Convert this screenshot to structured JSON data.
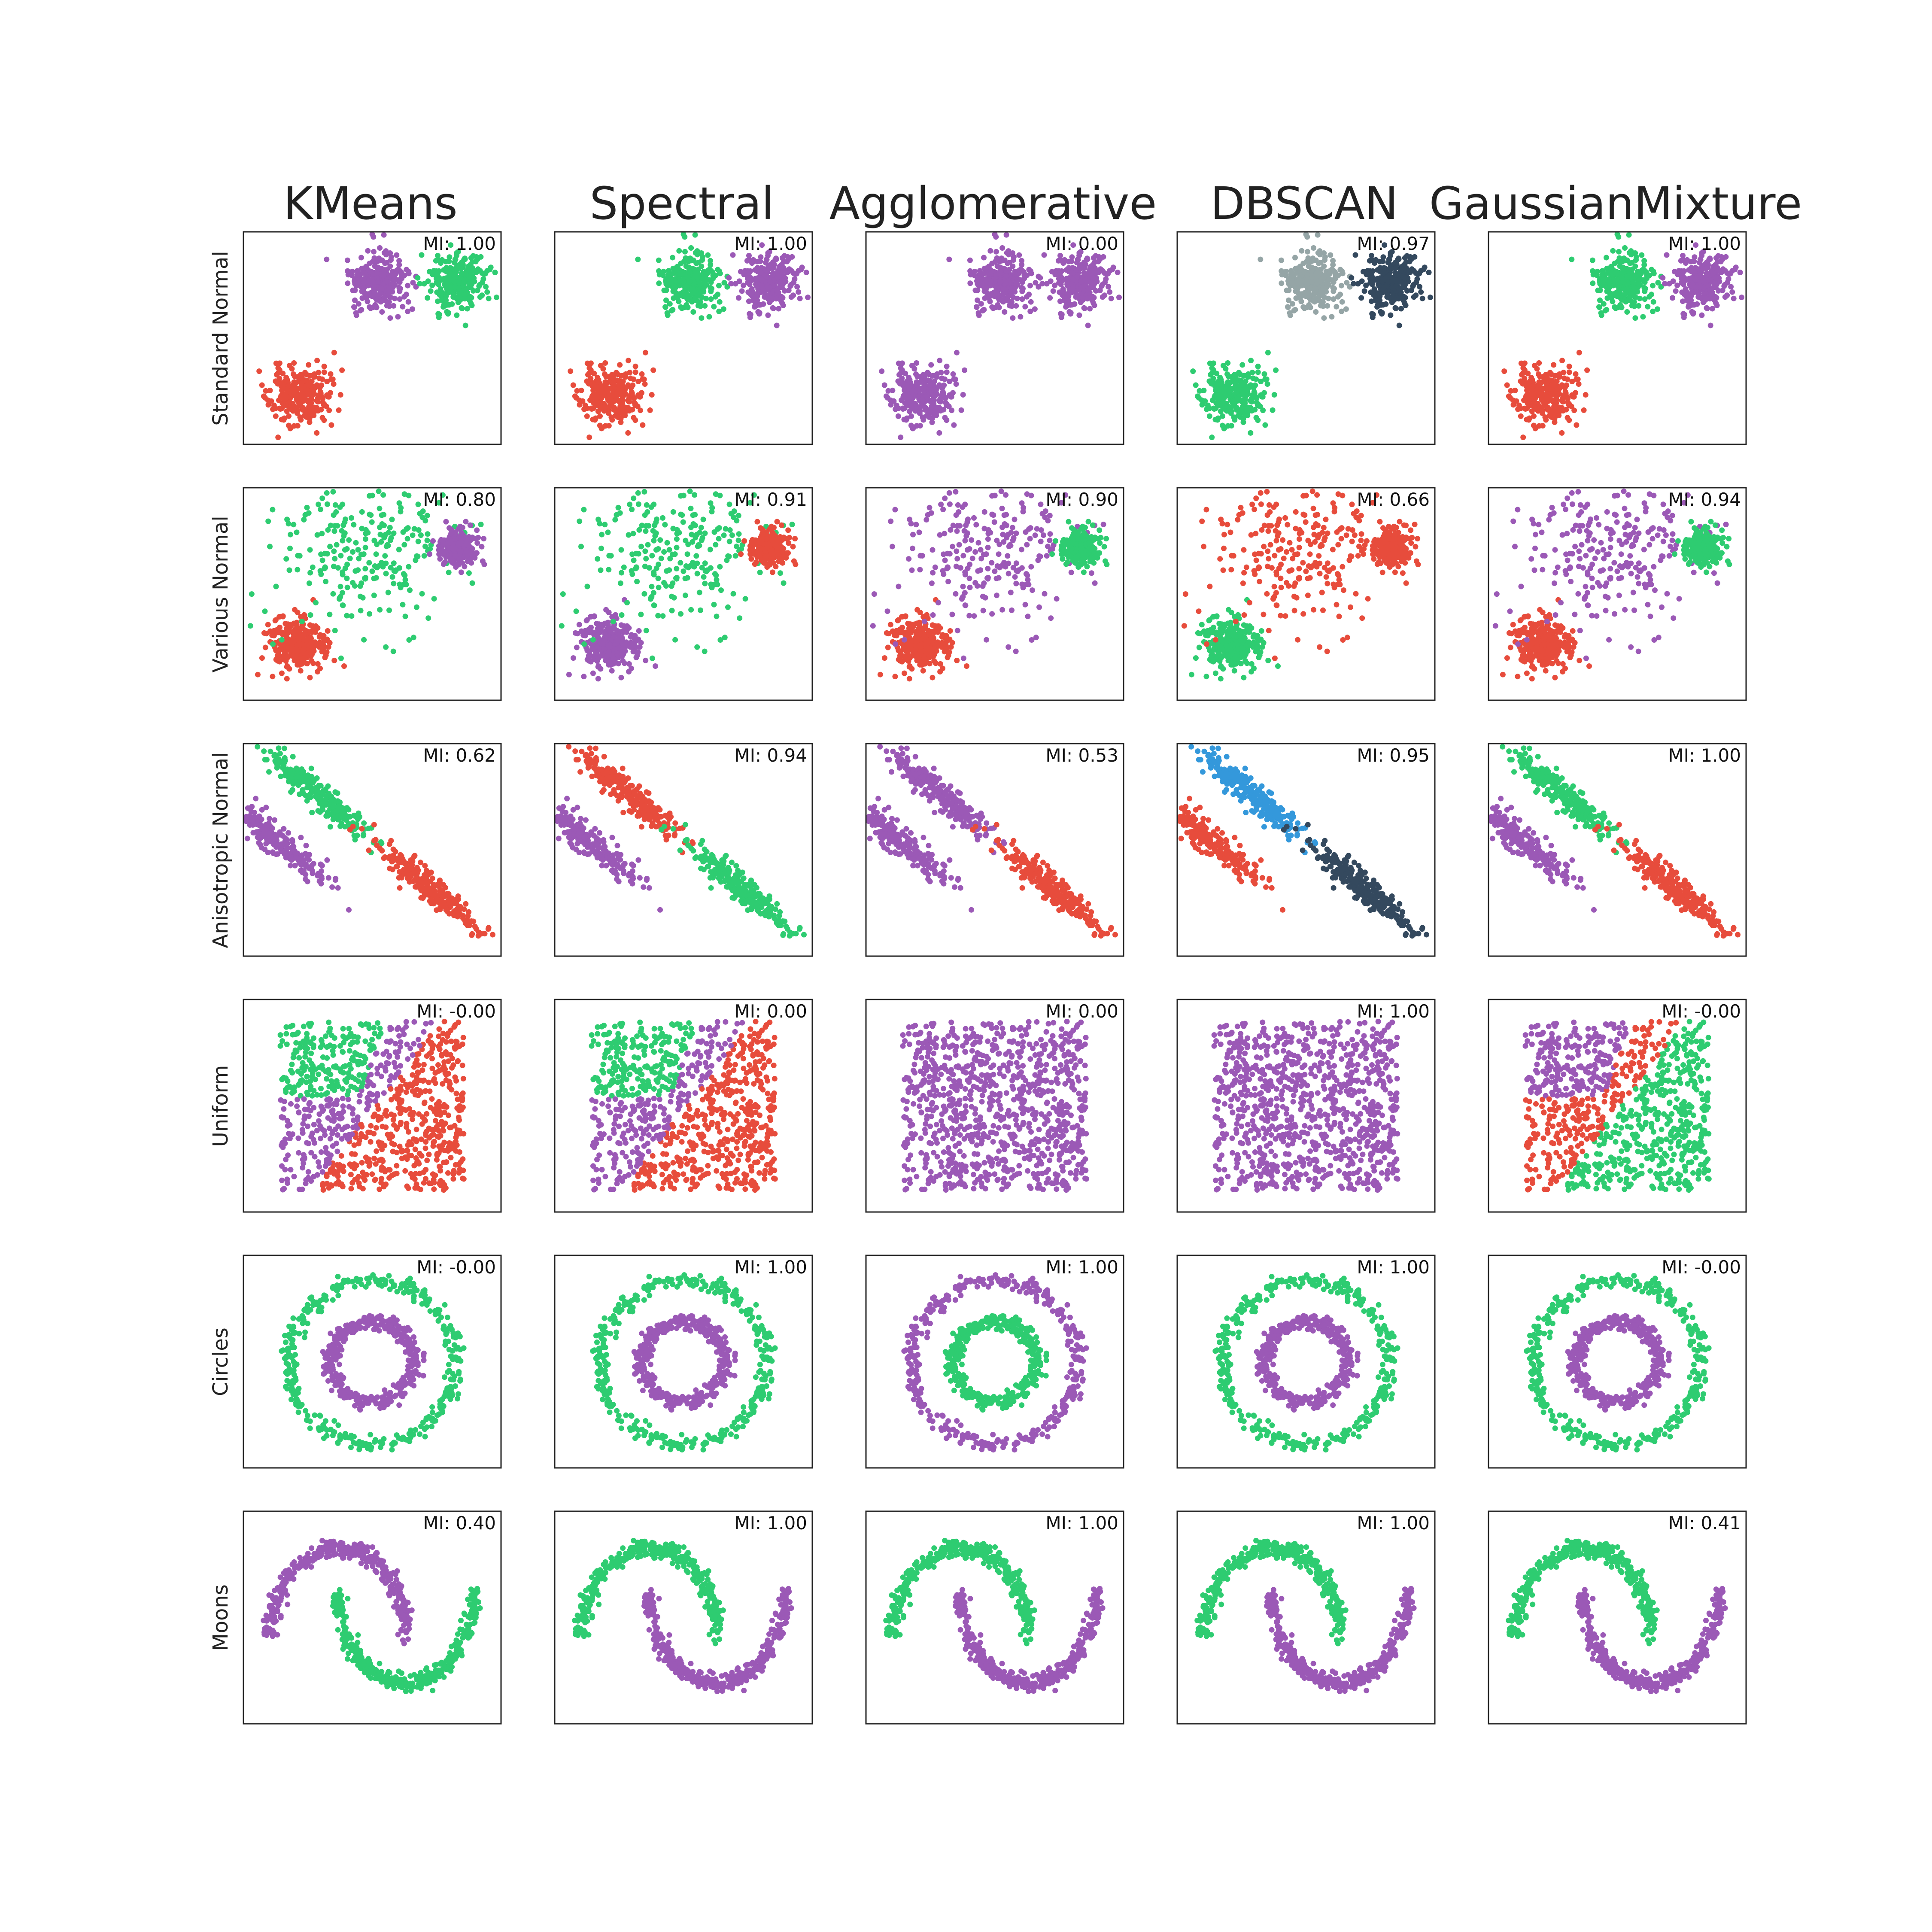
{
  "colors": {
    "purple": "#9b59b6",
    "green": "#2ecc71",
    "red": "#e74c3c",
    "gray": "#95a5a6",
    "navy": "#34495e",
    "blue": "#3498db"
  },
  "chart_data": {
    "type": "scatter",
    "grid": false,
    "columns": [
      "KMeans",
      "Spectral",
      "Agglomerative",
      "DBSCAN",
      "GaussianMixture"
    ],
    "rows": [
      "Standard Normal",
      "Various Normal",
      "Anisotropic Normal",
      "Uniform",
      "Circles",
      "Moons"
    ],
    "mi_labels": [
      [
        "MI: 1.00",
        "MI: 1.00",
        "MI: 0.00",
        "MI: 0.97",
        "MI: 1.00"
      ],
      [
        "MI: 0.80",
        "MI: 0.91",
        "MI: 0.90",
        "MI: 0.66",
        "MI: 0.94"
      ],
      [
        "MI: 0.62",
        "MI: 0.94",
        "MI: 0.53",
        "MI: 0.95",
        "MI: 1.00"
      ],
      [
        "MI: -0.00",
        "MI: 0.00",
        "MI: 0.00",
        "MI: 1.00",
        "MI: -0.00"
      ],
      [
        "MI: -0.00",
        "MI: 1.00",
        "MI: 1.00",
        "MI: 1.00",
        "MI: -0.00"
      ],
      [
        "MI: 0.40",
        "MI: 1.00",
        "MI: 1.00",
        "MI: 1.00",
        "MI: 0.41"
      ]
    ],
    "panels": {
      "standard_normal": {
        "shape": "three_blobs",
        "clusters": [
          {
            "center": [
              -5.2,
              -4.5
            ],
            "spread": 0.75
          },
          {
            "center": [
              -1.2,
              1.5
            ],
            "spread": 0.75
          },
          {
            "center": [
              2.8,
              1.5
            ],
            "spread": 0.75
          }
        ],
        "colors": [
          [
            "red",
            "purple",
            "green"
          ],
          [
            "red",
            "green",
            "purple"
          ],
          [
            "purple",
            "purple",
            "purple"
          ],
          [
            "green",
            "gray",
            "navy"
          ],
          [
            "red",
            "green",
            "purple"
          ]
        ]
      },
      "various_normal": {
        "shape": "three_blobs",
        "clusters": [
          {
            "center": [
              -4.5,
              -3.6
            ],
            "spread": 0.7
          },
          {
            "center": [
              -1.2,
              1.2
            ],
            "spread": 2.0
          },
          {
            "center": [
              3.4,
              1.4
            ],
            "spread": 0.45
          }
        ],
        "colors": [
          [
            "red",
            "green",
            "purple"
          ],
          [
            "purple",
            "green",
            "red"
          ],
          [
            "red",
            "purple",
            "green"
          ],
          [
            "green",
            "red",
            "red"
          ],
          [
            "red",
            "purple",
            "green"
          ]
        ]
      },
      "anisotropic_normal": {
        "shape": "three_stretched_blobs",
        "colors": [
          [
            "purple",
            "green",
            "red"
          ],
          [
            "purple",
            "red",
            "green"
          ],
          [
            "purple",
            "purple",
            "red"
          ],
          [
            "red",
            "blue",
            "navy"
          ],
          [
            "purple",
            "green",
            "red"
          ]
        ]
      },
      "uniform": {
        "shape": "uniform_square",
        "colors": [
          [
            "green",
            "purple",
            "red"
          ],
          [
            "green",
            "purple",
            "red"
          ],
          [
            "purple",
            "purple",
            "purple"
          ],
          [
            "purple",
            "purple",
            "purple"
          ],
          [
            "purple",
            "red",
            "green"
          ]
        ]
      },
      "circles": {
        "shape": "two_circles",
        "colors": [
          [
            "green",
            "purple"
          ],
          [
            "green",
            "purple"
          ],
          [
            "purple",
            "green"
          ],
          [
            "green",
            "purple"
          ],
          [
            "green",
            "purple"
          ]
        ]
      },
      "moons": {
        "shape": "two_moons",
        "colors": [
          [
            "purple",
            "green"
          ],
          [
            "green",
            "purple"
          ],
          [
            "green",
            "purple"
          ],
          [
            "green",
            "purple"
          ],
          [
            "green",
            "purple"
          ]
        ]
      }
    }
  }
}
